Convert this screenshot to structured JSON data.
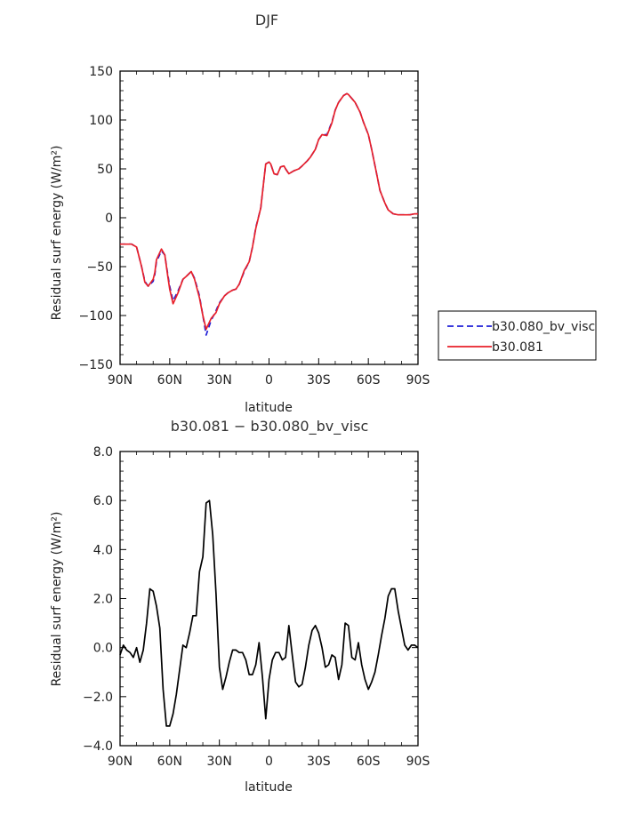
{
  "chart_data": [
    {
      "type": "line",
      "title": "DJF",
      "xlabel": "latitude",
      "ylabel": "Residual surf energy (W/m²)",
      "xlim": [
        90,
        -90
      ],
      "ylim": [
        -150,
        150
      ],
      "x_ticks": [
        "90N",
        "60N",
        "30N",
        "0",
        "30S",
        "60S",
        "90S"
      ],
      "y_ticks": [
        "150",
        "100",
        "50",
        "0",
        "−50",
        "−100",
        "−150"
      ],
      "legend": "right",
      "series": [
        {
          "name": "b30.080_bv_visc",
          "color": "#1f1fd8",
          "dash": "dashed",
          "x": [
            90,
            83,
            80,
            77,
            75,
            73,
            70,
            69,
            68,
            65,
            63,
            61,
            60,
            58,
            55,
            52,
            50,
            47,
            45,
            42,
            40,
            38,
            35,
            32,
            30,
            27,
            25,
            22,
            20,
            18,
            15,
            12,
            10,
            8,
            5,
            3,
            2,
            0,
            -1,
            -3,
            -5,
            -7,
            -9,
            -10,
            -12,
            -15,
            -18,
            -20,
            -23,
            -25,
            -28,
            -30,
            -32,
            -35,
            -38,
            -40,
            -42,
            -45,
            -47,
            -48,
            -50,
            -52,
            -55,
            -57,
            -60,
            -62,
            -65,
            -67,
            -70,
            -72,
            -75,
            -78,
            -80,
            -83,
            -85,
            -88,
            -90
          ],
          "y": [
            -27,
            -27,
            -30,
            -50,
            -65,
            -70,
            -65,
            -58,
            -45,
            -34,
            -38,
            -60,
            -70,
            -85,
            -75,
            -63,
            -60,
            -55,
            -62,
            -80,
            -100,
            -120,
            -105,
            -95,
            -87,
            -80,
            -77,
            -74,
            -73,
            -68,
            -55,
            -45,
            -30,
            -10,
            10,
            40,
            55,
            57,
            55,
            45,
            44,
            52,
            53,
            50,
            45,
            48,
            50,
            53,
            58,
            62,
            70,
            80,
            85,
            85,
            98,
            110,
            118,
            125,
            127,
            126,
            122,
            118,
            108,
            98,
            85,
            70,
            45,
            28,
            15,
            8,
            4,
            3,
            3,
            3,
            3,
            4,
            4
          ]
        },
        {
          "name": "b30.081",
          "color": "#e8202a",
          "dash": "solid",
          "x": [
            90,
            83,
            80,
            77,
            75,
            73,
            70,
            69,
            68,
            65,
            63,
            61,
            60,
            58,
            55,
            52,
            50,
            47,
            45,
            42,
            40,
            38,
            35,
            32,
            30,
            27,
            25,
            22,
            20,
            18,
            15,
            12,
            10,
            8,
            5,
            3,
            2,
            0,
            -1,
            -3,
            -5,
            -7,
            -9,
            -10,
            -12,
            -15,
            -18,
            -20,
            -23,
            -25,
            -28,
            -30,
            -32,
            -35,
            -38,
            -40,
            -42,
            -45,
            -47,
            -48,
            -50,
            -52,
            -55,
            -57,
            -60,
            -62,
            -65,
            -67,
            -70,
            -72,
            -75,
            -78,
            -80,
            -83,
            -85,
            -88,
            -90
          ],
          "y": [
            -27,
            -27,
            -30,
            -50,
            -66,
            -70,
            -63,
            -56,
            -43,
            -32,
            -38,
            -62,
            -73,
            -88,
            -77,
            -63,
            -60,
            -55,
            -63,
            -82,
            -100,
            -114,
            -103,
            -97,
            -88,
            -80,
            -77,
            -74,
            -73,
            -68,
            -54,
            -45,
            -30,
            -11,
            10,
            40,
            55,
            57,
            55,
            45,
            44,
            52,
            53,
            50,
            45,
            48,
            50,
            53,
            58,
            62,
            70,
            80,
            85,
            84,
            97,
            110,
            118,
            125,
            127,
            126,
            122,
            118,
            108,
            98,
            85,
            70,
            45,
            28,
            15,
            8,
            4,
            3,
            3,
            3,
            3,
            4,
            4
          ]
        }
      ]
    },
    {
      "type": "line",
      "title": "b30.081 − b30.080_bv_visc",
      "xlabel": "latitude",
      "ylabel": "Residual surf energy (W/m²)",
      "xlim": [
        90,
        -90
      ],
      "ylim": [
        -4,
        8
      ],
      "x_ticks": [
        "90N",
        "60N",
        "30N",
        "0",
        "30S",
        "60S",
        "90S"
      ],
      "y_ticks": [
        "8.0",
        "6.0",
        "4.0",
        "2.0",
        "0.0",
        "−2.0",
        "−4.0"
      ],
      "series": [
        {
          "color": "#000000",
          "x": [
            90,
            88,
            86,
            84,
            82,
            80,
            78,
            76,
            74,
            72,
            70,
            68,
            66,
            64,
            62,
            60,
            58,
            56,
            54,
            52,
            50,
            48,
            46,
            44,
            42,
            40,
            38,
            36,
            34,
            32,
            30,
            28,
            26,
            24,
            22,
            20,
            18,
            16,
            14,
            12,
            10,
            8,
            6,
            4,
            2,
            0,
            -2,
            -4,
            -6,
            -8,
            -10,
            -12,
            -14,
            -16,
            -18,
            -20,
            -22,
            -24,
            -26,
            -28,
            -30,
            -32,
            -34,
            -36,
            -38,
            -40,
            -42,
            -44,
            -46,
            -48,
            -50,
            -52,
            -54,
            -56,
            -58,
            -60,
            -62,
            -64,
            -66,
            -68,
            -70,
            -72,
            -74,
            -76,
            -78,
            -80,
            -82,
            -84,
            -86,
            -88,
            -90
          ],
          "y": [
            -0.3,
            0.1,
            -0.1,
            -0.2,
            -0.4,
            0.0,
            -0.6,
            -0.1,
            1.0,
            2.4,
            2.3,
            1.7,
            0.8,
            -1.7,
            -3.2,
            -3.2,
            -2.7,
            -1.9,
            -0.9,
            0.1,
            0.0,
            0.6,
            1.3,
            1.3,
            3.1,
            3.7,
            5.9,
            6.0,
            4.6,
            2.2,
            -0.8,
            -1.7,
            -1.2,
            -0.6,
            -0.1,
            -0.1,
            -0.2,
            -0.2,
            -0.5,
            -1.1,
            -1.1,
            -0.7,
            0.2,
            -1.2,
            -2.9,
            -1.3,
            -0.5,
            -0.2,
            -0.2,
            -0.5,
            -0.4,
            0.9,
            -0.3,
            -1.4,
            -1.6,
            -1.5,
            -0.8,
            0.1,
            0.7,
            0.9,
            0.6,
            0.0,
            -0.8,
            -0.7,
            -0.3,
            -0.4,
            -1.3,
            -0.7,
            1.0,
            0.9,
            -0.4,
            -0.5,
            0.2,
            -0.7,
            -1.3,
            -1.7,
            -1.4,
            -1.0,
            -0.3,
            0.5,
            1.2,
            2.1,
            2.4,
            2.4,
            1.5,
            0.8,
            0.1,
            -0.1,
            0.1,
            0.1,
            0.0
          ]
        }
      ]
    }
  ]
}
